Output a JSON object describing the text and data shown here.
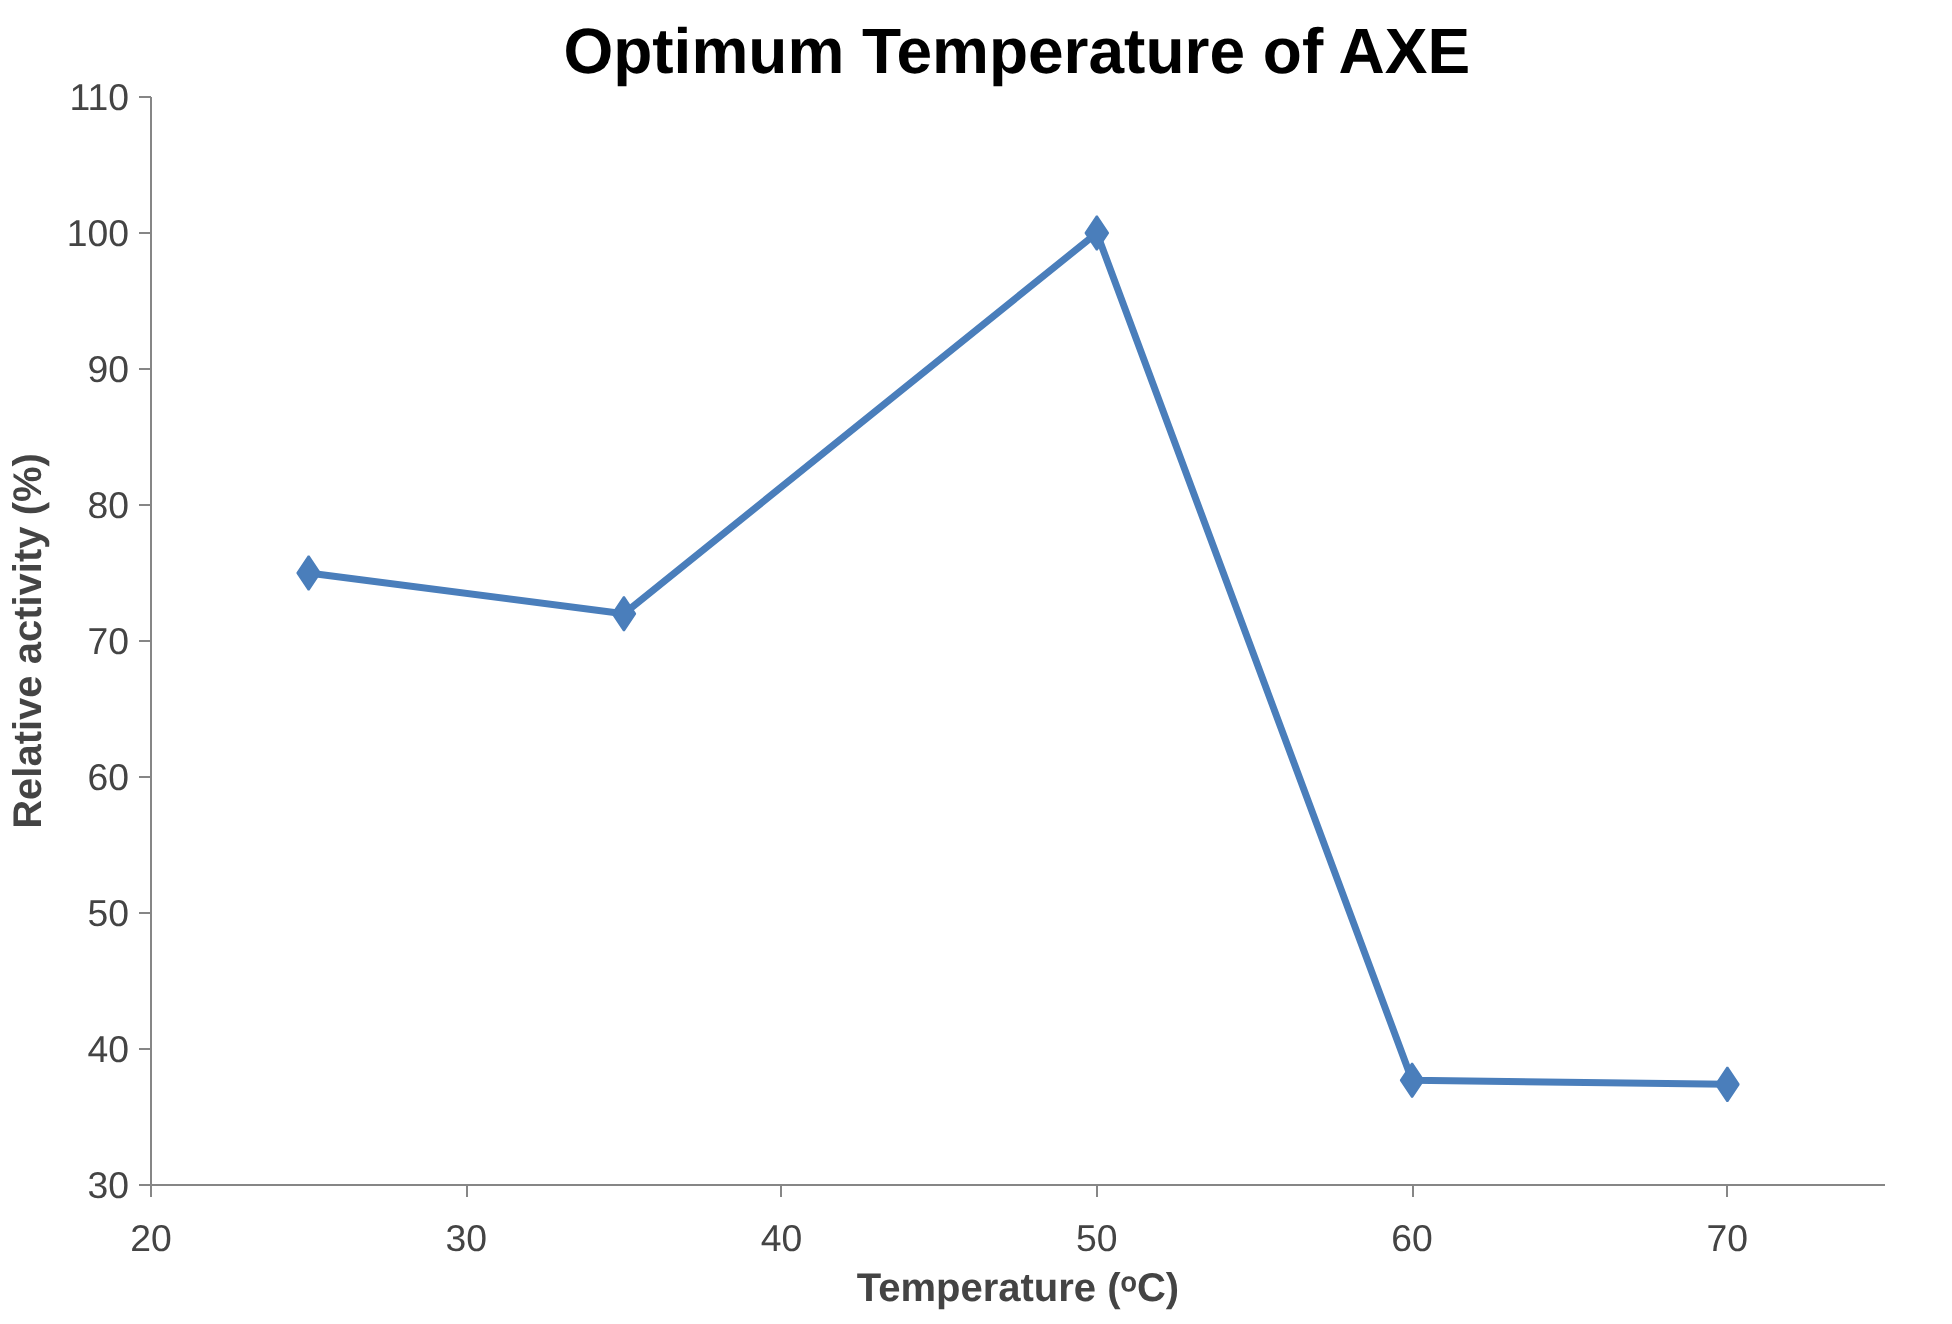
{
  "chart_data": {
    "type": "line",
    "title": "Optimum Temperature of AXE",
    "xlabel": "Temperature (ᵒC)",
    "ylabel": "Relative activity (%)",
    "x": [
      25,
      35,
      50,
      60,
      70
    ],
    "series": [
      {
        "color": "#4a7ebb",
        "values": [
          75,
          72,
          100,
          37.7,
          37.4
        ]
      }
    ],
    "xlim": [
      20,
      75
    ],
    "xticks": [
      20,
      30,
      40,
      50,
      60,
      70
    ],
    "ylim": [
      30,
      110
    ],
    "yticks": [
      30,
      40,
      50,
      60,
      70,
      80,
      90,
      100,
      110
    ],
    "grid": false,
    "marker": "diamond",
    "line_style": "solid"
  }
}
